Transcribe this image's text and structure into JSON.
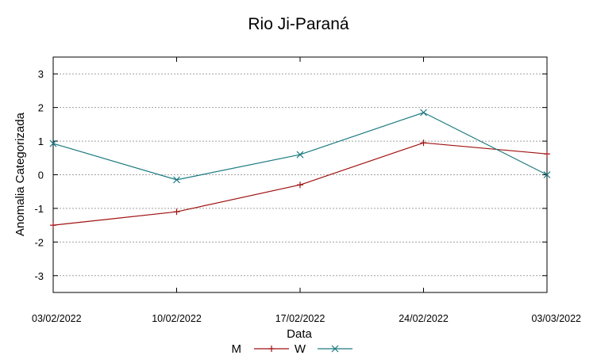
{
  "chart_data": {
    "type": "line",
    "title": "Rio Ji-Paraná",
    "xlabel": "Data",
    "ylabel": "Anomalia Categorizada",
    "x": [
      "03/02/2022",
      "10/02/2022",
      "17/02/2022",
      "24/02/2022",
      "03/03/2022"
    ],
    "ylim": [
      -3.5,
      3.5
    ],
    "yticks": [
      "-3",
      "-2",
      "-1",
      "0",
      "1",
      "2",
      "3"
    ],
    "grid": true,
    "legend_position": "bottom-center",
    "series": [
      {
        "name": "M",
        "color": "#a01010",
        "marker": "plus",
        "values": [
          -1.5,
          -1.1,
          -0.3,
          0.95,
          0.62
        ]
      },
      {
        "name": "W",
        "color": "#1a7a80",
        "marker": "x",
        "values": [
          0.93,
          -0.15,
          0.6,
          1.85,
          0.0
        ]
      }
    ]
  }
}
